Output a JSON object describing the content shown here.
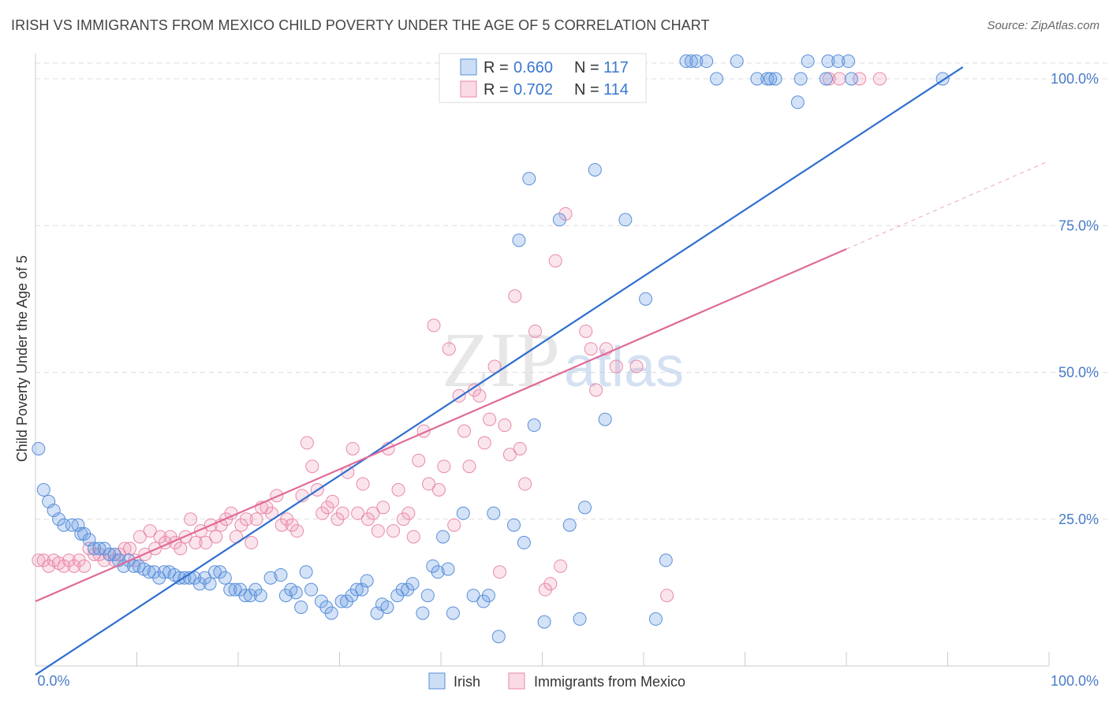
{
  "title": "IRISH VS IMMIGRANTS FROM MEXICO CHILD POVERTY UNDER THE AGE OF 5 CORRELATION CHART",
  "source": "Source: ZipAtlas.com",
  "watermark": {
    "zip": "ZIP",
    "atlas": "atlas"
  },
  "colors": {
    "irish_fill": "rgba(110,160,230,0.30)",
    "irish_stroke": "#5a8fd8",
    "irish_line": "#2f6fd0",
    "mexico_fill": "rgba(240,150,180,0.25)",
    "mexico_stroke": "#e88aaa",
    "mexico_line": "#e06a98",
    "tick_text": "#4a7cc9",
    "grid": "#dddddd"
  },
  "legend": {
    "r_label": "R =",
    "n_label": "N =",
    "irish": {
      "r": "0.660",
      "n": "117"
    },
    "mexico": {
      "r": "0.702",
      "n": "114"
    }
  },
  "chart_data": {
    "type": "scatter",
    "title": "IRISH VS IMMIGRANTS FROM MEXICO CHILD POVERTY UNDER THE AGE OF 5 CORRELATION CHART",
    "xlabel": "",
    "ylabel": "Child Poverty Under the Age of 5",
    "xlim": [
      0,
      100
    ],
    "ylim": [
      0,
      100
    ],
    "x_tick_labels": [
      "0.0%",
      "100.0%"
    ],
    "y_tick_labels": [
      "25.0%",
      "50.0%",
      "75.0%",
      "100.0%"
    ],
    "y_ticks": [
      25,
      50,
      75,
      100
    ],
    "grid": true,
    "legend_position": "top-center",
    "series": [
      {
        "name": "Irish",
        "color": "#5a8fd8",
        "trend": {
          "x": [
            0,
            91.5
          ],
          "y": [
            -1.5,
            102
          ]
        },
        "points": [
          [
            0.3,
            37
          ],
          [
            0.8,
            30
          ],
          [
            1.3,
            28
          ],
          [
            1.8,
            26.5
          ],
          [
            2.3,
            25
          ],
          [
            2.8,
            24
          ],
          [
            3.6,
            24
          ],
          [
            4.2,
            24
          ],
          [
            4.5,
            22.5
          ],
          [
            4.8,
            22.5
          ],
          [
            5.3,
            21.5
          ],
          [
            5.8,
            20
          ],
          [
            6.3,
            20
          ],
          [
            6.8,
            20
          ],
          [
            7.3,
            19
          ],
          [
            7.8,
            19
          ],
          [
            8.2,
            18
          ],
          [
            8.7,
            17
          ],
          [
            9.2,
            18
          ],
          [
            9.7,
            17
          ],
          [
            10.2,
            17
          ],
          [
            10.7,
            16.5
          ],
          [
            11.2,
            16
          ],
          [
            11.7,
            16
          ],
          [
            12.2,
            15
          ],
          [
            12.7,
            16
          ],
          [
            13.2,
            16
          ],
          [
            13.7,
            15.5
          ],
          [
            14.2,
            15
          ],
          [
            14.7,
            15
          ],
          [
            15.2,
            15
          ],
          [
            15.7,
            15
          ],
          [
            16.2,
            14
          ],
          [
            16.7,
            15
          ],
          [
            17.2,
            14
          ],
          [
            17.7,
            16
          ],
          [
            18.2,
            16
          ],
          [
            18.7,
            15
          ],
          [
            19.2,
            13
          ],
          [
            19.7,
            13
          ],
          [
            20.2,
            13
          ],
          [
            20.7,
            12
          ],
          [
            21.2,
            12
          ],
          [
            21.7,
            13
          ],
          [
            22.2,
            12
          ],
          [
            23.2,
            15
          ],
          [
            24.2,
            15.5
          ],
          [
            24.7,
            12
          ],
          [
            25.2,
            13
          ],
          [
            25.7,
            12.5
          ],
          [
            26.2,
            10
          ],
          [
            26.7,
            16
          ],
          [
            27.2,
            13
          ],
          [
            28.2,
            11
          ],
          [
            28.7,
            10
          ],
          [
            29.2,
            9
          ],
          [
            30.2,
            11
          ],
          [
            30.7,
            11
          ],
          [
            31.2,
            12
          ],
          [
            31.7,
            13
          ],
          [
            32.2,
            13
          ],
          [
            32.7,
            14.5
          ],
          [
            33.7,
            9
          ],
          [
            34.2,
            10.5
          ],
          [
            34.7,
            10
          ],
          [
            35.7,
            12
          ],
          [
            36.2,
            13
          ],
          [
            36.7,
            13
          ],
          [
            37.2,
            14
          ],
          [
            38.2,
            9
          ],
          [
            38.7,
            12
          ],
          [
            39.2,
            17
          ],
          [
            39.7,
            16
          ],
          [
            40.2,
            22
          ],
          [
            40.7,
            16.5
          ],
          [
            41.2,
            9
          ],
          [
            42.2,
            26
          ],
          [
            43.2,
            12
          ],
          [
            44.2,
            11
          ],
          [
            44.7,
            12
          ],
          [
            45.2,
            26
          ],
          [
            45.7,
            5
          ],
          [
            47.2,
            24
          ],
          [
            47.7,
            72.5
          ],
          [
            48.2,
            21
          ],
          [
            48.7,
            83
          ],
          [
            49.2,
            41
          ],
          [
            50.2,
            7.5
          ],
          [
            51.7,
            76
          ],
          [
            52.7,
            24
          ],
          [
            53.7,
            8
          ],
          [
            54.2,
            27
          ],
          [
            55.2,
            84.5
          ],
          [
            56.2,
            42
          ],
          [
            58.2,
            76
          ],
          [
            60.2,
            62.5
          ],
          [
            61.2,
            8
          ],
          [
            62.2,
            18
          ],
          [
            64.2,
            103
          ],
          [
            64.7,
            103
          ],
          [
            65.2,
            103
          ],
          [
            66.2,
            103
          ],
          [
            67.2,
            100
          ],
          [
            69.2,
            103
          ],
          [
            71.2,
            100
          ],
          [
            72.2,
            100
          ],
          [
            75.2,
            96
          ],
          [
            76.2,
            103
          ],
          [
            78.2,
            103
          ],
          [
            79.2,
            103
          ],
          [
            80.2,
            103
          ],
          [
            72.5,
            100
          ],
          [
            73.0,
            100
          ],
          [
            75.5,
            100
          ],
          [
            78.0,
            100
          ],
          [
            80.5,
            100
          ],
          [
            89.5,
            100
          ]
        ]
      },
      {
        "name": "Immigrants from Mexico",
        "color": "#e88aaa",
        "trend": {
          "x": [
            0,
            80
          ],
          "y": [
            11,
            71
          ]
        },
        "points": [
          [
            0.3,
            18
          ],
          [
            0.8,
            18
          ],
          [
            1.3,
            17
          ],
          [
            1.8,
            18
          ],
          [
            2.3,
            17.5
          ],
          [
            2.8,
            17
          ],
          [
            3.3,
            18
          ],
          [
            3.8,
            17
          ],
          [
            4.3,
            18
          ],
          [
            4.8,
            17
          ],
          [
            5.3,
            20
          ],
          [
            5.8,
            19
          ],
          [
            6.3,
            19
          ],
          [
            6.8,
            18
          ],
          [
            7.3,
            19
          ],
          [
            7.8,
            18
          ],
          [
            8.3,
            19
          ],
          [
            8.8,
            20
          ],
          [
            9.3,
            20
          ],
          [
            9.8,
            18
          ],
          [
            10.3,
            22
          ],
          [
            10.8,
            19
          ],
          [
            11.3,
            23
          ],
          [
            11.8,
            20
          ],
          [
            12.3,
            22
          ],
          [
            12.8,
            21
          ],
          [
            13.3,
            22
          ],
          [
            13.8,
            21
          ],
          [
            14.3,
            20
          ],
          [
            14.8,
            22
          ],
          [
            15.3,
            25
          ],
          [
            15.8,
            21
          ],
          [
            16.3,
            23
          ],
          [
            16.8,
            21
          ],
          [
            17.3,
            24
          ],
          [
            17.8,
            22
          ],
          [
            18.3,
            24
          ],
          [
            18.8,
            25
          ],
          [
            19.3,
            26
          ],
          [
            19.8,
            22
          ],
          [
            20.3,
            24
          ],
          [
            20.8,
            25
          ],
          [
            21.3,
            21
          ],
          [
            21.8,
            25
          ],
          [
            22.3,
            27
          ],
          [
            22.8,
            27
          ],
          [
            23.3,
            26
          ],
          [
            23.8,
            29
          ],
          [
            24.3,
            24
          ],
          [
            24.8,
            25
          ],
          [
            25.3,
            24
          ],
          [
            25.8,
            23
          ],
          [
            26.3,
            29
          ],
          [
            26.8,
            38
          ],
          [
            27.3,
            34
          ],
          [
            27.8,
            30
          ],
          [
            28.3,
            26
          ],
          [
            28.8,
            27
          ],
          [
            29.3,
            28
          ],
          [
            29.8,
            25
          ],
          [
            30.3,
            26
          ],
          [
            30.8,
            33
          ],
          [
            31.3,
            37
          ],
          [
            31.8,
            26
          ],
          [
            32.3,
            31
          ],
          [
            32.8,
            25
          ],
          [
            33.3,
            26
          ],
          [
            33.8,
            23
          ],
          [
            34.3,
            27
          ],
          [
            34.8,
            37
          ],
          [
            35.3,
            23
          ],
          [
            35.8,
            30
          ],
          [
            36.3,
            25
          ],
          [
            36.8,
            26
          ],
          [
            37.3,
            22
          ],
          [
            37.8,
            35
          ],
          [
            38.3,
            40
          ],
          [
            38.8,
            31
          ],
          [
            39.3,
            58
          ],
          [
            39.8,
            30
          ],
          [
            40.3,
            34
          ],
          [
            40.8,
            54
          ],
          [
            41.3,
            24
          ],
          [
            41.8,
            46
          ],
          [
            42.3,
            40
          ],
          [
            42.8,
            34
          ],
          [
            43.3,
            47
          ],
          [
            43.8,
            46
          ],
          [
            44.3,
            38
          ],
          [
            44.8,
            42
          ],
          [
            45.3,
            51
          ],
          [
            45.8,
            16
          ],
          [
            46.3,
            41
          ],
          [
            46.8,
            36
          ],
          [
            47.3,
            63
          ],
          [
            47.8,
            37
          ],
          [
            48.3,
            31
          ],
          [
            49.3,
            57
          ],
          [
            50.3,
            13
          ],
          [
            50.8,
            14
          ],
          [
            51.3,
            69
          ],
          [
            51.8,
            17
          ],
          [
            52.3,
            77
          ],
          [
            54.3,
            57
          ],
          [
            54.8,
            54
          ],
          [
            55.3,
            47
          ],
          [
            56.3,
            54
          ],
          [
            57.3,
            51
          ],
          [
            59.3,
            51
          ],
          [
            62.3,
            12
          ],
          [
            78.3,
            100
          ],
          [
            79.3,
            100
          ],
          [
            81.3,
            100
          ],
          [
            83.3,
            100
          ]
        ]
      }
    ]
  },
  "bottom_legend": [
    "Irish",
    "Immigrants from Mexico"
  ]
}
